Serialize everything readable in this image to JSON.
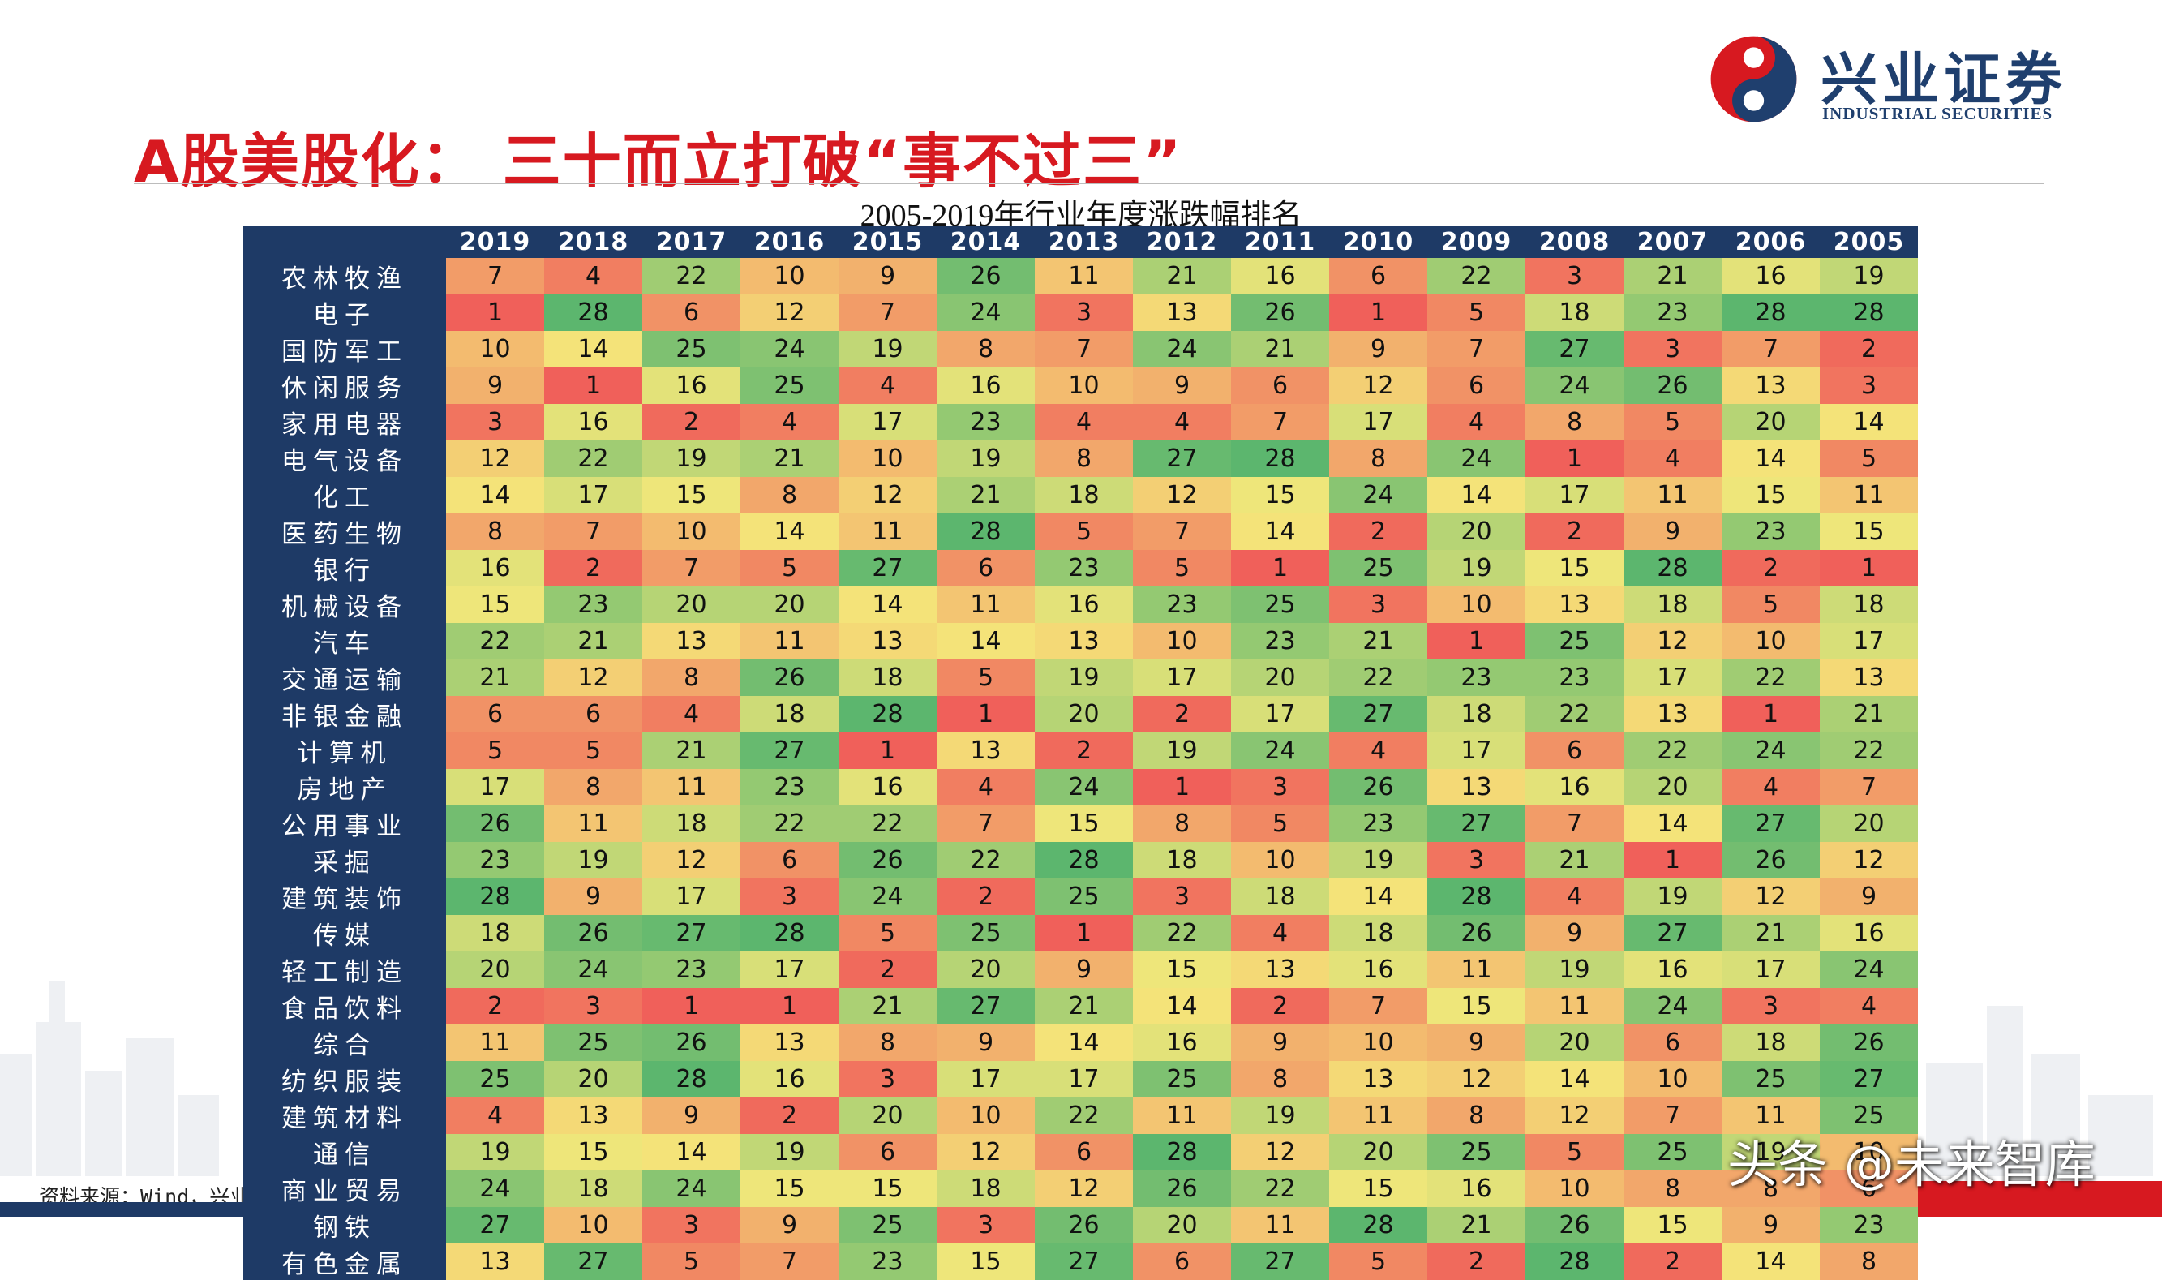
{
  "header": {
    "title": "A股美股化： 三十而立打破“事不过三”",
    "logo_cn": "兴业证券",
    "logo_en": "INDUSTRIAL SECURITIES"
  },
  "chart_data": {
    "type": "heatmap",
    "title": "2005-2019年行业年度涨跌幅排名",
    "years": [
      "2019",
      "2018",
      "2017",
      "2016",
      "2015",
      "2014",
      "2013",
      "2012",
      "2011",
      "2010",
      "2009",
      "2008",
      "2007",
      "2006",
      "2005"
    ],
    "industries": [
      "农林牧渔",
      "电子",
      "国防军工",
      "休闲服务",
      "家用电器",
      "电气设备",
      "化工",
      "医药生物",
      "银行",
      "机械设备",
      "汽车",
      "交通运输",
      "非银金融",
      "计算机",
      "房地产",
      "公用事业",
      "采掘",
      "建筑装饰",
      "传媒",
      "轻工制造",
      "食品饮料",
      "综合",
      "纺织服装",
      "建筑材料",
      "通信",
      "商业贸易",
      "钢铁",
      "有色金属"
    ],
    "values": [
      [
        7,
        4,
        22,
        10,
        9,
        26,
        11,
        21,
        16,
        6,
        22,
        3,
        21,
        16,
        19
      ],
      [
        1,
        28,
        6,
        12,
        7,
        24,
        3,
        13,
        26,
        1,
        5,
        18,
        23,
        28,
        28
      ],
      [
        10,
        14,
        25,
        24,
        19,
        8,
        7,
        24,
        21,
        9,
        7,
        27,
        3,
        7,
        2
      ],
      [
        9,
        1,
        16,
        25,
        4,
        16,
        10,
        9,
        6,
        12,
        6,
        24,
        26,
        13,
        3
      ],
      [
        3,
        16,
        2,
        4,
        17,
        23,
        4,
        4,
        7,
        17,
        4,
        8,
        5,
        20,
        14
      ],
      [
        12,
        22,
        19,
        21,
        10,
        19,
        8,
        27,
        28,
        8,
        24,
        1,
        4,
        14,
        5
      ],
      [
        14,
        17,
        15,
        8,
        12,
        21,
        18,
        12,
        15,
        24,
        14,
        17,
        11,
        15,
        11
      ],
      [
        8,
        7,
        10,
        14,
        11,
        28,
        5,
        7,
        14,
        2,
        20,
        2,
        9,
        23,
        15
      ],
      [
        16,
        2,
        7,
        5,
        27,
        6,
        23,
        5,
        1,
        25,
        19,
        15,
        28,
        2,
        1
      ],
      [
        15,
        23,
        20,
        20,
        14,
        11,
        16,
        23,
        25,
        3,
        10,
        13,
        18,
        5,
        18
      ],
      [
        22,
        21,
        13,
        11,
        13,
        14,
        13,
        10,
        23,
        21,
        1,
        25,
        12,
        10,
        17
      ],
      [
        21,
        12,
        8,
        26,
        18,
        5,
        19,
        17,
        20,
        22,
        23,
        23,
        17,
        22,
        13
      ],
      [
        6,
        6,
        4,
        18,
        28,
        1,
        20,
        2,
        17,
        27,
        18,
        22,
        13,
        1,
        21
      ],
      [
        5,
        5,
        21,
        27,
        1,
        13,
        2,
        19,
        24,
        4,
        17,
        6,
        22,
        24,
        22
      ],
      [
        17,
        8,
        11,
        23,
        16,
        4,
        24,
        1,
        3,
        26,
        13,
        16,
        20,
        4,
        7
      ],
      [
        26,
        11,
        18,
        22,
        22,
        7,
        15,
        8,
        5,
        23,
        27,
        7,
        14,
        27,
        20
      ],
      [
        23,
        19,
        12,
        6,
        26,
        22,
        28,
        18,
        10,
        19,
        3,
        21,
        1,
        26,
        12
      ],
      [
        28,
        9,
        17,
        3,
        24,
        2,
        25,
        3,
        18,
        14,
        28,
        4,
        19,
        12,
        9
      ],
      [
        18,
        26,
        27,
        28,
        5,
        25,
        1,
        22,
        4,
        18,
        26,
        9,
        27,
        21,
        16
      ],
      [
        20,
        24,
        23,
        17,
        2,
        20,
        9,
        15,
        13,
        16,
        11,
        19,
        16,
        17,
        24
      ],
      [
        2,
        3,
        1,
        1,
        21,
        27,
        21,
        14,
        2,
        7,
        15,
        11,
        24,
        3,
        4
      ],
      [
        11,
        25,
        26,
        13,
        8,
        9,
        14,
        16,
        9,
        10,
        9,
        20,
        6,
        18,
        26
      ],
      [
        25,
        20,
        28,
        16,
        3,
        17,
        17,
        25,
        8,
        13,
        12,
        14,
        10,
        25,
        27
      ],
      [
        4,
        13,
        9,
        2,
        20,
        10,
        22,
        11,
        19,
        11,
        8,
        12,
        7,
        11,
        25
      ],
      [
        19,
        15,
        14,
        19,
        6,
        12,
        6,
        28,
        12,
        20,
        25,
        5,
        25,
        19,
        10
      ],
      [
        24,
        18,
        24,
        15,
        15,
        18,
        12,
        26,
        22,
        15,
        16,
        10,
        8,
        8,
        6
      ],
      [
        27,
        10,
        3,
        9,
        25,
        3,
        26,
        20,
        11,
        28,
        21,
        26,
        15,
        9,
        23
      ],
      [
        13,
        27,
        5,
        7,
        23,
        15,
        27,
        6,
        27,
        5,
        2,
        28,
        2,
        14,
        8
      ]
    ],
    "scale": {
      "min": 1,
      "max": 28,
      "low_color": "#f0605a",
      "mid_color": "#f4e87a",
      "high_color": "#5cb66e"
    }
  },
  "footer": {
    "source": "资料来源：Wind，兴业证券经济与金融研究院整理",
    "watermark": "头条 @未来智库"
  },
  "colors": {
    "brand_red": "#d71920",
    "brand_navy": "#1e3a66"
  }
}
